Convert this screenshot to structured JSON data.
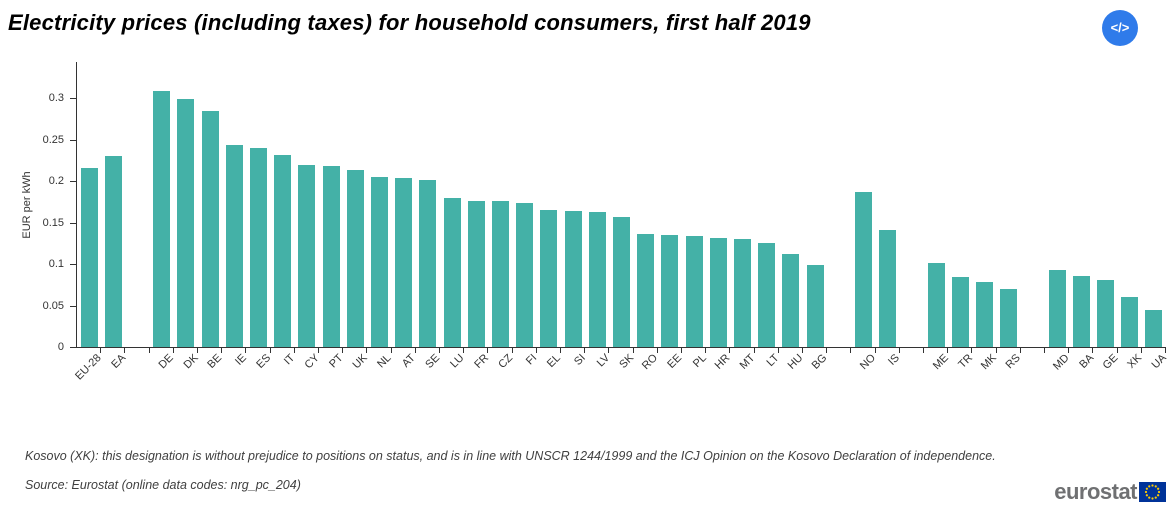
{
  "header": {
    "title": "Electricity prices (including taxes) for household consumers, first half 2019",
    "embed_button_label": "</>"
  },
  "chart_data": {
    "type": "bar",
    "title": "Electricity prices (including taxes) for household consumers, first half 2019",
    "xlabel": "",
    "ylabel": "EUR per kWh",
    "ylim": [
      0,
      0.343
    ],
    "yticks": [
      0,
      0.05,
      0.1,
      0.15,
      0.2,
      0.25,
      0.3
    ],
    "ytick_labels": [
      "0",
      "0.05",
      "0.1",
      "0.15",
      "0.2",
      "0.25",
      "0.3"
    ],
    "grid": false,
    "legend": "none",
    "bar_color": "#44b1a7",
    "axis_color": "#333333",
    "categories": [
      "EU-28",
      "EA",
      "DE",
      "DK",
      "BE",
      "IE",
      "ES",
      "IT",
      "CY",
      "PT",
      "UK",
      "NL",
      "AT",
      "SE",
      "LU",
      "FR",
      "CZ",
      "FI",
      "EL",
      "SI",
      "LV",
      "SK",
      "RO",
      "EE",
      "PL",
      "HR",
      "MT",
      "LT",
      "HU",
      "BG",
      "NO",
      "IS",
      "ME",
      "TR",
      "MK",
      "RS",
      "MD",
      "BA",
      "GE",
      "XK",
      "UA"
    ],
    "values": [
      0.2159,
      0.2305,
      0.3088,
      0.2984,
      0.2839,
      0.2437,
      0.2403,
      0.2311,
      0.2194,
      0.218,
      0.2134,
      0.2052,
      0.2032,
      0.2009,
      0.1798,
      0.1765,
      0.1754,
      0.1737,
      0.165,
      0.1634,
      0.1629,
      0.1567,
      0.1356,
      0.1354,
      0.1338,
      0.1311,
      0.1306,
      0.1254,
      0.112,
      0.0993,
      0.1867,
      0.1414,
      0.1016,
      0.0842,
      0.0778,
      0.0704,
      0.0925,
      0.086,
      0.0806,
      0.0604,
      0.0444
    ],
    "gaps_after": [
      "EA",
      "BG",
      "IS",
      "RS"
    ]
  },
  "footer": {
    "note": "Kosovo (XK): this designation is without prejudice to positions on status, and is in line with UNSCR 1244/1999 and the ICJ Opinion on the Kosovo Declaration of independence.",
    "source": "Source: Eurostat (online data codes: nrg_pc_204)",
    "logo_text": "eurostat"
  }
}
